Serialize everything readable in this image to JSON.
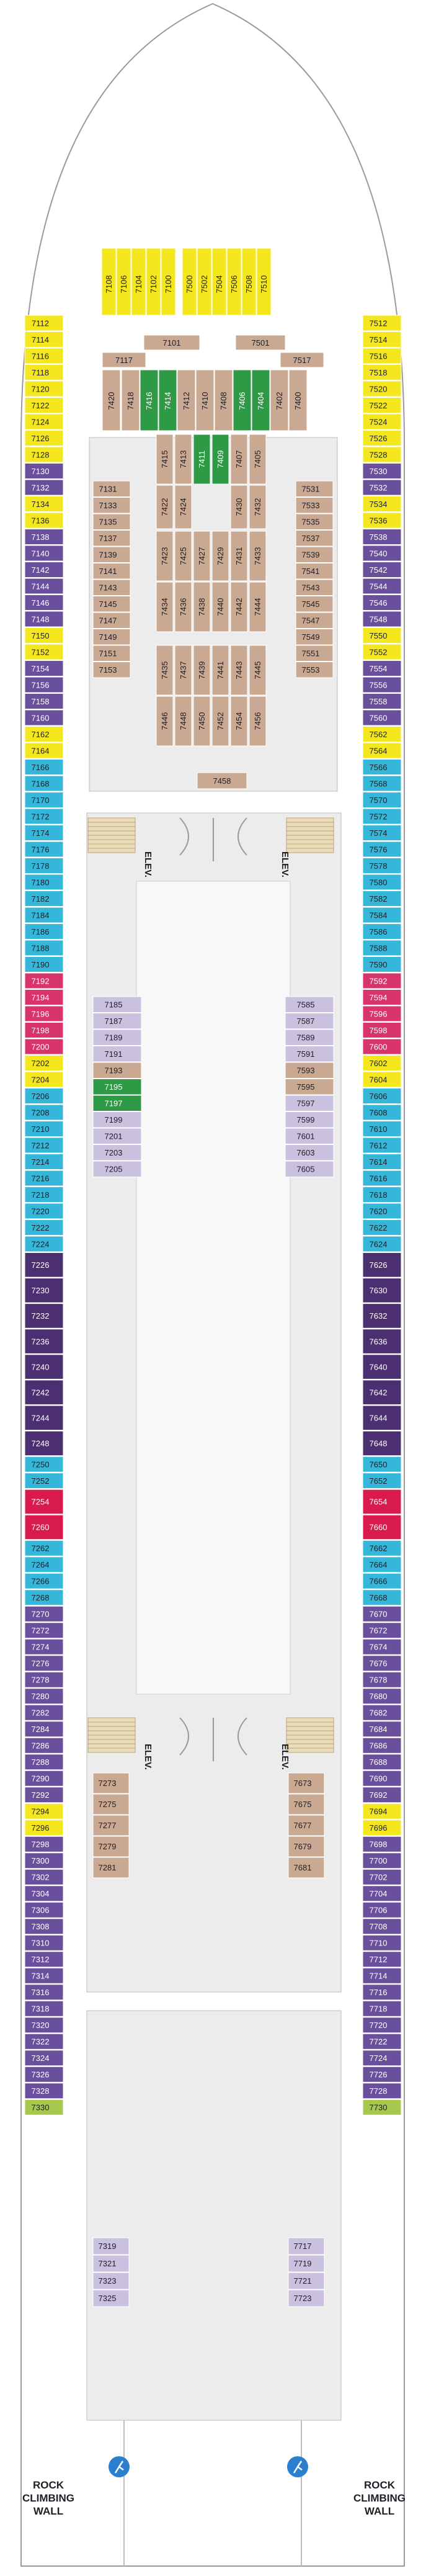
{
  "colors": {
    "yellow": "#f5e71e",
    "tan": "#caa993",
    "purple": "#6a4f9c",
    "dark_purple": "#4b2f70",
    "blue": "#35b7d9",
    "lilac": "#c9c1dd",
    "red": "#d9336b",
    "crimson": "#d81b4c",
    "green": "#2f9a46",
    "lime": "#a6c84d",
    "hull": "#ffffff",
    "hull_line": "#9a9a9a",
    "inner": "#ececec",
    "corridor": "#f8f8f8"
  },
  "labels": {
    "elevator": "ELEV.",
    "rock_climbing_wall": [
      "ROCK",
      "CLIMBING",
      "WALL"
    ],
    "elevator_lower_left": "ELEV.",
    "elevator_lower_right": "ELEV."
  },
  "icons": {
    "accessible": "wheelchair-icon",
    "connecting": "double-arrow-icon",
    "sofa_bed": "sofa-bed-icon",
    "extra_bed": "asterisk-icon",
    "triangle": "triangle-icon",
    "climbing": "climber-icon"
  },
  "bow_cabins": {
    "yellow": [
      "7108",
      "7106",
      "7104",
      "7102",
      "7100",
      "7500",
      "7502",
      "7504",
      "7506",
      "7508",
      "7510"
    ],
    "tan": [
      "7101",
      "7501",
      "7117",
      "7517",
      "7418",
      "7412",
      "7410",
      "7408",
      "7402",
      "7400",
      "7420"
    ],
    "green": [
      "7416",
      "7414",
      "7406",
      "7404"
    ]
  },
  "left_outer": [
    {
      "n": "7112",
      "c": "yellow"
    },
    {
      "n": "7114",
      "c": "yellow"
    },
    {
      "n": "7116",
      "c": "yellow"
    },
    {
      "n": "7118",
      "c": "yellow"
    },
    {
      "n": "7120",
      "c": "yellow"
    },
    {
      "n": "7122",
      "c": "yellow"
    },
    {
      "n": "7124",
      "c": "yellow"
    },
    {
      "n": "7126",
      "c": "yellow"
    },
    {
      "n": "7128",
      "c": "yellow"
    },
    {
      "n": "7130",
      "c": "purple"
    },
    {
      "n": "7132",
      "c": "purple"
    },
    {
      "n": "7134",
      "c": "yellow"
    },
    {
      "n": "7136",
      "c": "yellow"
    },
    {
      "n": "7138",
      "c": "purple"
    },
    {
      "n": "7140",
      "c": "purple"
    },
    {
      "n": "7142",
      "c": "purple"
    },
    {
      "n": "7144",
      "c": "purple"
    },
    {
      "n": "7146",
      "c": "purple"
    },
    {
      "n": "7148",
      "c": "purple"
    },
    {
      "n": "7150",
      "c": "yellow"
    },
    {
      "n": "7152",
      "c": "yellow"
    },
    {
      "n": "7154",
      "c": "purple"
    },
    {
      "n": "7156",
      "c": "purple"
    },
    {
      "n": "7158",
      "c": "purple"
    },
    {
      "n": "7160",
      "c": "purple"
    },
    {
      "n": "7162",
      "c": "yellow"
    },
    {
      "n": "7164",
      "c": "yellow"
    },
    {
      "n": "7166",
      "c": "blue"
    },
    {
      "n": "7168",
      "c": "blue"
    },
    {
      "n": "7170",
      "c": "blue"
    },
    {
      "n": "7172",
      "c": "blue"
    },
    {
      "n": "7174",
      "c": "blue"
    },
    {
      "n": "7176",
      "c": "blue"
    },
    {
      "n": "7178",
      "c": "blue"
    },
    {
      "n": "7180",
      "c": "blue"
    },
    {
      "n": "7182",
      "c": "blue"
    },
    {
      "n": "7184",
      "c": "blue"
    },
    {
      "n": "7186",
      "c": "blue"
    },
    {
      "n": "7188",
      "c": "blue"
    },
    {
      "n": "7190",
      "c": "blue"
    },
    {
      "n": "7192",
      "c": "red"
    },
    {
      "n": "7194",
      "c": "red"
    },
    {
      "n": "7196",
      "c": "red"
    },
    {
      "n": "7198",
      "c": "red"
    },
    {
      "n": "7200",
      "c": "red"
    },
    {
      "n": "7202",
      "c": "yellow"
    },
    {
      "n": "7204",
      "c": "yellow"
    },
    {
      "n": "7206",
      "c": "blue"
    },
    {
      "n": "7208",
      "c": "blue"
    },
    {
      "n": "7210",
      "c": "blue"
    },
    {
      "n": "7212",
      "c": "blue"
    },
    {
      "n": "7214",
      "c": "blue"
    },
    {
      "n": "7216",
      "c": "blue"
    },
    {
      "n": "7218",
      "c": "blue"
    },
    {
      "n": "7220",
      "c": "blue"
    },
    {
      "n": "7222",
      "c": "blue"
    },
    {
      "n": "7224",
      "c": "blue"
    },
    {
      "n": "7226",
      "c": "dark_purple"
    },
    {
      "n": "7230",
      "c": "dark_purple"
    },
    {
      "n": "7232",
      "c": "dark_purple"
    },
    {
      "n": "7236",
      "c": "dark_purple"
    },
    {
      "n": "7240",
      "c": "dark_purple"
    },
    {
      "n": "7242",
      "c": "dark_purple"
    },
    {
      "n": "7244",
      "c": "dark_purple"
    },
    {
      "n": "7248",
      "c": "dark_purple"
    },
    {
      "n": "7250",
      "c": "blue"
    },
    {
      "n": "7252",
      "c": "blue"
    },
    {
      "n": "7254",
      "c": "crimson"
    },
    {
      "n": "7260",
      "c": "crimson"
    },
    {
      "n": "7262",
      "c": "blue"
    },
    {
      "n": "7264",
      "c": "blue"
    },
    {
      "n": "7266",
      "c": "blue"
    },
    {
      "n": "7268",
      "c": "blue"
    },
    {
      "n": "7270",
      "c": "purple"
    },
    {
      "n": "7272",
      "c": "purple"
    },
    {
      "n": "7274",
      "c": "purple"
    },
    {
      "n": "7276",
      "c": "purple"
    },
    {
      "n": "7278",
      "c": "purple"
    },
    {
      "n": "7280",
      "c": "purple"
    },
    {
      "n": "7282",
      "c": "purple"
    },
    {
      "n": "7284",
      "c": "purple"
    },
    {
      "n": "7286",
      "c": "purple"
    },
    {
      "n": "7288",
      "c": "purple"
    },
    {
      "n": "7290",
      "c": "purple"
    },
    {
      "n": "7292",
      "c": "purple"
    },
    {
      "n": "7294",
      "c": "yellow"
    },
    {
      "n": "7296",
      "c": "yellow"
    },
    {
      "n": "7298",
      "c": "purple"
    },
    {
      "n": "7300",
      "c": "purple"
    },
    {
      "n": "7302",
      "c": "purple"
    },
    {
      "n": "7304",
      "c": "purple"
    },
    {
      "n": "7306",
      "c": "purple"
    },
    {
      "n": "7308",
      "c": "purple"
    },
    {
      "n": "7310",
      "c": "purple"
    },
    {
      "n": "7312",
      "c": "purple"
    },
    {
      "n": "7314",
      "c": "purple"
    },
    {
      "n": "7316",
      "c": "purple"
    },
    {
      "n": "7318",
      "c": "purple"
    },
    {
      "n": "7320",
      "c": "purple"
    },
    {
      "n": "7322",
      "c": "purple"
    },
    {
      "n": "7324",
      "c": "purple"
    },
    {
      "n": "7326",
      "c": "purple"
    },
    {
      "n": "7328",
      "c": "purple"
    },
    {
      "n": "7330",
      "c": "lime"
    }
  ],
  "right_outer": [
    {
      "n": "7512",
      "c": "yellow"
    },
    {
      "n": "7514",
      "c": "yellow"
    },
    {
      "n": "7516",
      "c": "yellow"
    },
    {
      "n": "7518",
      "c": "yellow"
    },
    {
      "n": "7520",
      "c": "yellow"
    },
    {
      "n": "7522",
      "c": "yellow"
    },
    {
      "n": "7524",
      "c": "yellow"
    },
    {
      "n": "7526",
      "c": "yellow"
    },
    {
      "n": "7528",
      "c": "yellow"
    },
    {
      "n": "7530",
      "c": "purple"
    },
    {
      "n": "7532",
      "c": "purple"
    },
    {
      "n": "7534",
      "c": "yellow"
    },
    {
      "n": "7536",
      "c": "yellow"
    },
    {
      "n": "7538",
      "c": "purple"
    },
    {
      "n": "7540",
      "c": "purple"
    },
    {
      "n": "7542",
      "c": "purple"
    },
    {
      "n": "7544",
      "c": "purple"
    },
    {
      "n": "7546",
      "c": "purple"
    },
    {
      "n": "7548",
      "c": "purple"
    },
    {
      "n": "7550",
      "c": "yellow"
    },
    {
      "n": "7552",
      "c": "yellow"
    },
    {
      "n": "7554",
      "c": "purple"
    },
    {
      "n": "7556",
      "c": "purple"
    },
    {
      "n": "7558",
      "c": "purple"
    },
    {
      "n": "7560",
      "c": "purple"
    },
    {
      "n": "7562",
      "c": "yellow"
    },
    {
      "n": "7564",
      "c": "yellow"
    },
    {
      "n": "7566",
      "c": "blue"
    },
    {
      "n": "7568",
      "c": "blue"
    },
    {
      "n": "7570",
      "c": "blue"
    },
    {
      "n": "7572",
      "c": "blue"
    },
    {
      "n": "7574",
      "c": "blue"
    },
    {
      "n": "7576",
      "c": "blue"
    },
    {
      "n": "7578",
      "c": "blue"
    },
    {
      "n": "7580",
      "c": "blue"
    },
    {
      "n": "7582",
      "c": "blue"
    },
    {
      "n": "7584",
      "c": "blue"
    },
    {
      "n": "7586",
      "c": "blue"
    },
    {
      "n": "7588",
      "c": "blue"
    },
    {
      "n": "7590",
      "c": "blue"
    },
    {
      "n": "7592",
      "c": "red"
    },
    {
      "n": "7594",
      "c": "red"
    },
    {
      "n": "7596",
      "c": "red"
    },
    {
      "n": "7598",
      "c": "red"
    },
    {
      "n": "7600",
      "c": "red"
    },
    {
      "n": "7602",
      "c": "yellow"
    },
    {
      "n": "7604",
      "c": "yellow"
    },
    {
      "n": "7606",
      "c": "blue"
    },
    {
      "n": "7608",
      "c": "blue"
    },
    {
      "n": "7610",
      "c": "blue"
    },
    {
      "n": "7612",
      "c": "blue"
    },
    {
      "n": "7614",
      "c": "blue"
    },
    {
      "n": "7616",
      "c": "blue"
    },
    {
      "n": "7618",
      "c": "blue"
    },
    {
      "n": "7620",
      "c": "blue"
    },
    {
      "n": "7622",
      "c": "blue"
    },
    {
      "n": "7624",
      "c": "blue"
    },
    {
      "n": "7626",
      "c": "dark_purple"
    },
    {
      "n": "7630",
      "c": "dark_purple"
    },
    {
      "n": "7632",
      "c": "dark_purple"
    },
    {
      "n": "7636",
      "c": "dark_purple"
    },
    {
      "n": "7640",
      "c": "dark_purple"
    },
    {
      "n": "7642",
      "c": "dark_purple"
    },
    {
      "n": "7644",
      "c": "dark_purple"
    },
    {
      "n": "7648",
      "c": "dark_purple"
    },
    {
      "n": "7650",
      "c": "blue"
    },
    {
      "n": "7652",
      "c": "blue"
    },
    {
      "n": "7654",
      "c": "crimson"
    },
    {
      "n": "7660",
      "c": "crimson"
    },
    {
      "n": "7662",
      "c": "blue"
    },
    {
      "n": "7664",
      "c": "blue"
    },
    {
      "n": "7666",
      "c": "blue"
    },
    {
      "n": "7668",
      "c": "blue"
    },
    {
      "n": "7670",
      "c": "purple"
    },
    {
      "n": "7672",
      "c": "purple"
    },
    {
      "n": "7674",
      "c": "purple"
    },
    {
      "n": "7676",
      "c": "purple"
    },
    {
      "n": "7678",
      "c": "purple"
    },
    {
      "n": "7680",
      "c": "purple"
    },
    {
      "n": "7682",
      "c": "purple"
    },
    {
      "n": "7684",
      "c": "purple"
    },
    {
      "n": "7686",
      "c": "purple"
    },
    {
      "n": "7688",
      "c": "purple"
    },
    {
      "n": "7690",
      "c": "purple"
    },
    {
      "n": "7692",
      "c": "purple"
    },
    {
      "n": "7694",
      "c": "yellow"
    },
    {
      "n": "7696",
      "c": "yellow"
    },
    {
      "n": "7698",
      "c": "purple"
    },
    {
      "n": "7700",
      "c": "purple"
    },
    {
      "n": "7702",
      "c": "purple"
    },
    {
      "n": "7704",
      "c": "purple"
    },
    {
      "n": "7706",
      "c": "purple"
    },
    {
      "n": "7708",
      "c": "purple"
    },
    {
      "n": "7710",
      "c": "purple"
    },
    {
      "n": "7712",
      "c": "purple"
    },
    {
      "n": "7714",
      "c": "purple"
    },
    {
      "n": "7716",
      "c": "purple"
    },
    {
      "n": "7718",
      "c": "purple"
    },
    {
      "n": "7720",
      "c": "purple"
    },
    {
      "n": "7722",
      "c": "purple"
    },
    {
      "n": "7724",
      "c": "purple"
    },
    {
      "n": "7726",
      "c": "purple"
    },
    {
      "n": "7728",
      "c": "purple"
    },
    {
      "n": "7730",
      "c": "lime"
    }
  ],
  "left_inner_fwd": [
    "7131",
    "7133",
    "7135",
    "7137",
    "7139",
    "7141",
    "7143",
    "7145",
    "7147",
    "7149",
    "7151",
    "7153"
  ],
  "right_inner_fwd": [
    "7531",
    "7533",
    "7535",
    "7537",
    "7539",
    "7541",
    "7543",
    "7545",
    "7547",
    "7549",
    "7551",
    "7553"
  ],
  "atrium_top": [
    "7415",
    "7413",
    "7411",
    "7409",
    "7407",
    "7405",
    "7422",
    "7424",
    "7430",
    "7432"
  ],
  "atrium_mid": [
    "7423",
    "7425",
    "7427",
    "7429",
    "7431",
    "7433",
    "7434",
    "7436",
    "7438",
    "7440",
    "7442",
    "7444"
  ],
  "atrium_low": [
    "7435",
    "7437",
    "7439",
    "7441",
    "7443",
    "7445",
    "7446",
    "7448",
    "7450",
    "7452",
    "7454",
    "7456"
  ],
  "atrium_bottom": "7458",
  "left_inner_mid": [
    {
      "n": "7185",
      "c": "lilac"
    },
    {
      "n": "7187",
      "c": "lilac"
    },
    {
      "n": "7189",
      "c": "lilac"
    },
    {
      "n": "7191",
      "c": "lilac"
    },
    {
      "n": "7193",
      "c": "tan"
    },
    {
      "n": "7195",
      "c": "green"
    },
    {
      "n": "7197",
      "c": "green"
    },
    {
      "n": "7199",
      "c": "lilac"
    },
    {
      "n": "7201",
      "c": "lilac"
    },
    {
      "n": "7203",
      "c": "lilac"
    },
    {
      "n": "7205",
      "c": "lilac"
    }
  ],
  "right_inner_mid": [
    {
      "n": "7585",
      "c": "lilac"
    },
    {
      "n": "7587",
      "c": "lilac"
    },
    {
      "n": "7589",
      "c": "lilac"
    },
    {
      "n": "7591",
      "c": "lilac"
    },
    {
      "n": "7593",
      "c": "tan"
    },
    {
      "n": "7595",
      "c": "tan"
    },
    {
      "n": "7597",
      "c": "lilac"
    },
    {
      "n": "7599",
      "c": "lilac"
    },
    {
      "n": "7601",
      "c": "lilac"
    },
    {
      "n": "7603",
      "c": "lilac"
    },
    {
      "n": "7605",
      "c": "lilac"
    }
  ],
  "left_inner_aft": [
    "7273",
    "7275",
    "7277",
    "7279",
    "7281"
  ],
  "right_inner_aft": [
    "7673",
    "7675",
    "7677",
    "7679",
    "7681"
  ],
  "left_inner_stern": [
    "7319",
    "7321",
    "7323",
    "7325"
  ],
  "right_inner_stern": [
    "7717",
    "7719",
    "7721",
    "7723"
  ]
}
